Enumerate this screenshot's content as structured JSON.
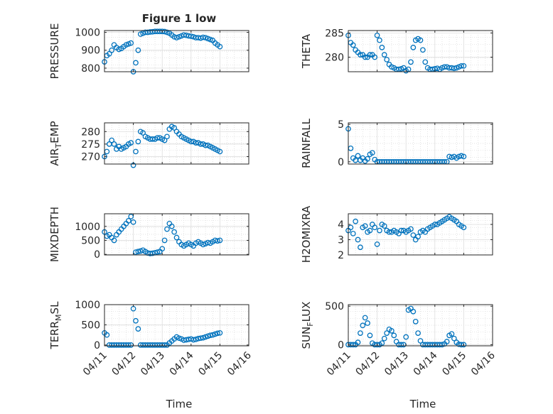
{
  "figure": {
    "title": "Figure 1 low",
    "date_ticks": [
      "04/11",
      "04/12",
      "04/13",
      "04/14",
      "04/15",
      "04/16"
    ],
    "xlabel": "Time"
  },
  "chart_data": [
    {
      "type": "scatter",
      "ylabel": "PRESSURE",
      "ylim": [
        780,
        1010
      ],
      "yticks": [
        "800",
        "900",
        "1000"
      ],
      "grid": true,
      "series": [
        {
          "x": [
            "04/11 00:00",
            "04/11 02:00",
            "04/11 04:00",
            "04/11 06:00",
            "04/11 08:00",
            "04/11 10:00",
            "04/11 12:00",
            "04/11 14:00",
            "04/11 16:00",
            "04/11 18:00",
            "04/11 20:00",
            "04/11 22:00",
            "04/12 00:00",
            "04/12 02:00",
            "04/12 04:00",
            "04/12 06:00",
            "04/12 08:00",
            "04/12 10:00",
            "04/12 12:00",
            "04/12 14:00",
            "04/12 16:00",
            "04/12 18:00",
            "04/12 20:00",
            "04/12 22:00",
            "04/13 00:00",
            "04/13 02:00",
            "04/13 04:00",
            "04/13 06:00",
            "04/13 08:00",
            "04/13 10:00",
            "04/13 12:00",
            "04/13 14:00",
            "04/13 16:00",
            "04/13 18:00",
            "04/13 20:00",
            "04/13 22:00",
            "04/14 00:00",
            "04/14 02:00",
            "04/14 04:00",
            "04/14 06:00",
            "04/14 08:00",
            "04/14 10:00",
            "04/14 12:00",
            "04/14 14:00",
            "04/14 16:00",
            "04/14 18:00",
            "04/14 20:00",
            "04/14 22:00",
            "04/15 00:00"
          ],
          "y": [
            835,
            870,
            880,
            900,
            930,
            915,
            905,
            910,
            920,
            930,
            935,
            940,
            780,
            830,
            900,
            990,
            995,
            1000,
            1000,
            1002,
            1003,
            1005,
            1005,
            1005,
            1005,
            1004,
            1000,
            995,
            985,
            975,
            970,
            975,
            980,
            985,
            983,
            980,
            978,
            975,
            970,
            970,
            968,
            972,
            970,
            965,
            960,
            955,
            940,
            930,
            920
          ]
        }
      ]
    },
    {
      "type": "scatter",
      "ylabel": "THETA",
      "ylim": [
        277,
        285.5
      ],
      "yticks": [
        "280",
        "285"
      ],
      "grid": true,
      "series": [
        {
          "x": [
            "04/11 00:00",
            "04/11 02:00",
            "04/11 04:00",
            "04/11 06:00",
            "04/11 08:00",
            "04/11 10:00",
            "04/11 12:00",
            "04/11 14:00",
            "04/11 16:00",
            "04/11 18:00",
            "04/11 20:00",
            "04/11 22:00",
            "04/12 00:00",
            "04/12 02:00",
            "04/12 04:00",
            "04/12 06:00",
            "04/12 08:00",
            "04/12 10:00",
            "04/12 12:00",
            "04/12 14:00",
            "04/12 16:00",
            "04/12 18:00",
            "04/12 20:00",
            "04/12 22:00",
            "04/13 00:00",
            "04/13 02:00",
            "04/13 04:00",
            "04/13 06:00",
            "04/13 08:00",
            "04/13 10:00",
            "04/13 12:00",
            "04/13 14:00",
            "04/13 16:00",
            "04/13 18:00",
            "04/13 20:00",
            "04/13 22:00",
            "04/14 00:00",
            "04/14 02:00",
            "04/14 04:00",
            "04/14 06:00",
            "04/14 08:00",
            "04/14 10:00",
            "04/14 12:00",
            "04/14 14:00",
            "04/14 16:00",
            "04/14 18:00",
            "04/14 20:00",
            "04/14 22:00",
            "04/15 00:00"
          ],
          "y": [
            284.5,
            283,
            282.5,
            281.5,
            281,
            280.5,
            280.5,
            280,
            280,
            280.5,
            280.5,
            280,
            284.5,
            283.5,
            282,
            280.5,
            279.5,
            278.5,
            278,
            277.8,
            277.5,
            277.5,
            277.6,
            277.8,
            277.2,
            277.5,
            279,
            282,
            283.5,
            283.8,
            283.5,
            281.5,
            279,
            277.8,
            277.5,
            277.5,
            277.6,
            277.7,
            277.5,
            277.8,
            278,
            278,
            277.8,
            277.8,
            277.7,
            277.8,
            278,
            278.2,
            278.2
          ]
        }
      ]
    },
    {
      "type": "scatter",
      "ylabel": "AIR_TEMP",
      "ylim": [
        267,
        283.5
      ],
      "yticks": [
        "270",
        "275",
        "280"
      ],
      "grid": true,
      "series": [
        {
          "x": [
            "04/11 00:00",
            "04/11 02:00",
            "04/11 04:00",
            "04/11 06:00",
            "04/11 08:00",
            "04/11 10:00",
            "04/11 12:00",
            "04/11 14:00",
            "04/11 16:00",
            "04/11 18:00",
            "04/11 20:00",
            "04/11 22:00",
            "04/12 00:00",
            "04/12 02:00",
            "04/12 04:00",
            "04/12 06:00",
            "04/12 08:00",
            "04/12 10:00",
            "04/12 12:00",
            "04/12 14:00",
            "04/12 16:00",
            "04/12 18:00",
            "04/12 20:00",
            "04/12 22:00",
            "04/13 00:00",
            "04/13 02:00",
            "04/13 04:00",
            "04/13 06:00",
            "04/13 08:00",
            "04/13 10:00",
            "04/13 12:00",
            "04/13 14:00",
            "04/13 16:00",
            "04/13 18:00",
            "04/13 20:00",
            "04/13 22:00",
            "04/14 00:00",
            "04/14 02:00",
            "04/14 04:00",
            "04/14 06:00",
            "04/14 08:00",
            "04/14 10:00",
            "04/14 12:00",
            "04/14 14:00",
            "04/14 16:00",
            "04/14 18:00",
            "04/14 20:00",
            "04/14 22:00",
            "04/15 00:00"
          ],
          "y": [
            270,
            272,
            275,
            276.5,
            275,
            273,
            274,
            273,
            273.5,
            274,
            275,
            275.5,
            266.5,
            272,
            276,
            280,
            279.5,
            278,
            277.5,
            277,
            277,
            277,
            277.5,
            277.5,
            277,
            276.5,
            278,
            281,
            282,
            281.5,
            280,
            279,
            278,
            277.5,
            277,
            276.5,
            276,
            276,
            275.5,
            275.5,
            275,
            275,
            274.5,
            274.5,
            274,
            273.5,
            273,
            272.5,
            272
          ]
        }
      ]
    },
    {
      "type": "scatter",
      "ylabel": "RAINFALL",
      "ylim": [
        -0.3,
        5.2
      ],
      "yticks": [
        "0",
        "5"
      ],
      "grid": true,
      "series": [
        {
          "x": [
            "04/11 00:00",
            "04/11 02:00",
            "04/11 04:00",
            "04/11 06:00",
            "04/11 08:00",
            "04/11 10:00",
            "04/11 12:00",
            "04/11 14:00",
            "04/11 16:00",
            "04/11 18:00",
            "04/11 20:00",
            "04/11 22:00",
            "04/12 00:00",
            "04/12 02:00",
            "04/12 04:00",
            "04/12 06:00",
            "04/12 08:00",
            "04/12 10:00",
            "04/12 12:00",
            "04/12 14:00",
            "04/12 16:00",
            "04/12 18:00",
            "04/12 20:00",
            "04/12 22:00",
            "04/13 00:00",
            "04/13 02:00",
            "04/13 04:00",
            "04/13 06:00",
            "04/13 08:00",
            "04/13 10:00",
            "04/13 12:00",
            "04/13 14:00",
            "04/13 16:00",
            "04/13 18:00",
            "04/13 20:00",
            "04/13 22:00",
            "04/14 00:00",
            "04/14 02:00",
            "04/14 04:00",
            "04/14 06:00",
            "04/14 08:00",
            "04/14 10:00",
            "04/14 12:00",
            "04/14 14:00",
            "04/14 16:00",
            "04/14 18:00",
            "04/14 20:00",
            "04/14 22:00",
            "04/15 00:00"
          ],
          "y": [
            4.4,
            1.8,
            0.5,
            0.2,
            0.8,
            0.2,
            0.5,
            0.1,
            0.4,
            1.0,
            1.2,
            0.3,
            0,
            0,
            0,
            0,
            0,
            0,
            0,
            0,
            0,
            0,
            0,
            0,
            0,
            0,
            0,
            0,
            0,
            0,
            0,
            0,
            0,
            0,
            0,
            0,
            0,
            0,
            0,
            0,
            0,
            0,
            0.7,
            0.6,
            0.7,
            0.5,
            0.7,
            0.8,
            0.7
          ]
        }
      ]
    },
    {
      "type": "scatter",
      "ylabel": "MIXDEPTH",
      "ylim": [
        -20,
        1450
      ],
      "yticks": [
        "0",
        "500",
        "1000"
      ],
      "grid": true,
      "series": [
        {
          "x": [
            "04/11 00:00",
            "04/11 02:00",
            "04/11 04:00",
            "04/11 06:00",
            "04/11 08:00",
            "04/11 10:00",
            "04/11 12:00",
            "04/11 14:00",
            "04/11 16:00",
            "04/11 18:00",
            "04/11 20:00",
            "04/11 22:00",
            "04/12 00:00",
            "04/12 02:00",
            "04/12 04:00",
            "04/12 06:00",
            "04/12 08:00",
            "04/12 10:00",
            "04/12 12:00",
            "04/12 14:00",
            "04/12 16:00",
            "04/12 18:00",
            "04/12 20:00",
            "04/12 22:00",
            "04/13 00:00",
            "04/13 02:00",
            "04/13 04:00",
            "04/13 06:00",
            "04/13 08:00",
            "04/13 10:00",
            "04/13 12:00",
            "04/13 14:00",
            "04/13 16:00",
            "04/13 18:00",
            "04/13 20:00",
            "04/13 22:00",
            "04/14 00:00",
            "04/14 02:00",
            "04/14 04:00",
            "04/14 06:00",
            "04/14 08:00",
            "04/14 10:00",
            "04/14 12:00",
            "04/14 14:00",
            "04/14 16:00",
            "04/14 18:00",
            "04/14 20:00",
            "04/14 22:00",
            "04/15 00:00"
          ],
          "y": [
            800,
            650,
            700,
            600,
            500,
            700,
            800,
            900,
            1000,
            1100,
            1200,
            1350,
            1150,
            80,
            100,
            120,
            150,
            100,
            50,
            30,
            40,
            60,
            80,
            100,
            200,
            500,
            900,
            1100,
            1000,
            800,
            600,
            450,
            350,
            300,
            350,
            400,
            350,
            300,
            400,
            450,
            400,
            350,
            380,
            420,
            400,
            450,
            500,
            480,
            500
          ]
        }
      ]
    },
    {
      "type": "scatter",
      "ylabel": "H2OMIXRA",
      "ylim": [
        2,
        4.7
      ],
      "yticks": [
        "2",
        "3",
        "4"
      ],
      "grid": true,
      "series": [
        {
          "x": [
            "04/11 00:00",
            "04/11 02:00",
            "04/11 04:00",
            "04/11 06:00",
            "04/11 08:00",
            "04/11 10:00",
            "04/11 12:00",
            "04/11 14:00",
            "04/11 16:00",
            "04/11 18:00",
            "04/11 20:00",
            "04/11 22:00",
            "04/12 00:00",
            "04/12 02:00",
            "04/12 04:00",
            "04/12 06:00",
            "04/12 08:00",
            "04/12 10:00",
            "04/12 12:00",
            "04/12 14:00",
            "04/12 16:00",
            "04/12 18:00",
            "04/12 20:00",
            "04/12 22:00",
            "04/13 00:00",
            "04/13 02:00",
            "04/13 04:00",
            "04/13 06:00",
            "04/13 08:00",
            "04/13 10:00",
            "04/13 12:00",
            "04/13 14:00",
            "04/13 16:00",
            "04/13 18:00",
            "04/13 20:00",
            "04/13 22:00",
            "04/14 00:00",
            "04/14 02:00",
            "04/14 04:00",
            "04/14 06:00",
            "04/14 08:00",
            "04/14 10:00",
            "04/14 12:00",
            "04/14 14:00",
            "04/14 16:00",
            "04/14 18:00",
            "04/14 20:00",
            "04/14 22:00",
            "04/15 00:00"
          ],
          "y": [
            3.6,
            3.8,
            3.4,
            4.2,
            3.0,
            2.5,
            3.8,
            3.9,
            3.5,
            3.6,
            4.0,
            3.8,
            2.7,
            3.6,
            4.0,
            3.9,
            3.6,
            3.5,
            3.5,
            3.6,
            3.5,
            3.4,
            3.6,
            3.6,
            3.5,
            3.6,
            3.7,
            3.3,
            3.0,
            3.2,
            3.5,
            3.6,
            3.5,
            3.7,
            3.8,
            3.9,
            4.0,
            4.0,
            4.1,
            4.2,
            4.3,
            4.4,
            4.5,
            4.4,
            4.3,
            4.2,
            4.0,
            3.9,
            3.8
          ]
        }
      ]
    },
    {
      "type": "scatter",
      "ylabel": "TERR_MSL",
      "ylim": [
        -20,
        1000
      ],
      "yticks": [
        "0",
        "500",
        "1000"
      ],
      "grid": true,
      "series": [
        {
          "x": [
            "04/11 00:00",
            "04/11 02:00",
            "04/11 04:00",
            "04/11 06:00",
            "04/11 08:00",
            "04/11 10:00",
            "04/11 12:00",
            "04/11 14:00",
            "04/11 16:00",
            "04/11 18:00",
            "04/11 20:00",
            "04/11 22:00",
            "04/12 00:00",
            "04/12 02:00",
            "04/12 04:00",
            "04/12 06:00",
            "04/12 08:00",
            "04/12 10:00",
            "04/12 12:00",
            "04/12 14:00",
            "04/12 16:00",
            "04/12 18:00",
            "04/12 20:00",
            "04/12 22:00",
            "04/13 00:00",
            "04/13 02:00",
            "04/13 04:00",
            "04/13 06:00",
            "04/13 08:00",
            "04/13 10:00",
            "04/13 12:00",
            "04/13 14:00",
            "04/13 16:00",
            "04/13 18:00",
            "04/13 20:00",
            "04/13 22:00",
            "04/14 00:00",
            "04/14 02:00",
            "04/14 04:00",
            "04/14 06:00",
            "04/14 08:00",
            "04/14 10:00",
            "04/14 12:00",
            "04/14 14:00",
            "04/14 16:00",
            "04/14 18:00",
            "04/14 20:00",
            "04/14 22:00",
            "04/15 00:00"
          ],
          "y": [
            300,
            250,
            0,
            0,
            0,
            0,
            0,
            0,
            0,
            0,
            0,
            0,
            900,
            600,
            400,
            0,
            0,
            0,
            0,
            0,
            0,
            0,
            0,
            0,
            0,
            0,
            0,
            50,
            100,
            150,
            200,
            170,
            150,
            120,
            130,
            140,
            150,
            130,
            140,
            160,
            170,
            180,
            200,
            220,
            240,
            250,
            270,
            290,
            300
          ]
        }
      ]
    },
    {
      "type": "scatter",
      "ylabel": "SUN_FLUX",
      "ylim": [
        -15,
        520
      ],
      "yticks": [
        "0",
        "500"
      ],
      "grid": true,
      "series": [
        {
          "x": [
            "04/11 00:00",
            "04/11 02:00",
            "04/11 04:00",
            "04/11 06:00",
            "04/11 08:00",
            "04/11 10:00",
            "04/11 12:00",
            "04/11 14:00",
            "04/11 16:00",
            "04/11 18:00",
            "04/11 20:00",
            "04/11 22:00",
            "04/12 00:00",
            "04/12 02:00",
            "04/12 04:00",
            "04/12 06:00",
            "04/12 08:00",
            "04/12 10:00",
            "04/12 12:00",
            "04/12 14:00",
            "04/12 16:00",
            "04/12 18:00",
            "04/12 20:00",
            "04/12 22:00",
            "04/13 00:00",
            "04/13 02:00",
            "04/13 04:00",
            "04/13 06:00",
            "04/13 08:00",
            "04/13 10:00",
            "04/13 12:00",
            "04/13 14:00",
            "04/13 16:00",
            "04/13 18:00",
            "04/13 20:00",
            "04/13 22:00",
            "04/14 00:00",
            "04/14 02:00",
            "04/14 04:00",
            "04/14 06:00",
            "04/14 08:00",
            "04/14 10:00",
            "04/14 12:00",
            "04/14 14:00",
            "04/14 16:00",
            "04/14 18:00",
            "04/14 20:00",
            "04/14 22:00",
            "04/15 00:00"
          ],
          "y": [
            0,
            0,
            0,
            0,
            30,
            150,
            250,
            350,
            280,
            120,
            20,
            0,
            0,
            0,
            20,
            80,
            150,
            200,
            180,
            120,
            40,
            0,
            0,
            0,
            100,
            450,
            470,
            430,
            300,
            150,
            50,
            0,
            0,
            0,
            0,
            0,
            0,
            0,
            0,
            0,
            10,
            40,
            120,
            140,
            80,
            30,
            5,
            0,
            0
          ]
        }
      ]
    }
  ]
}
